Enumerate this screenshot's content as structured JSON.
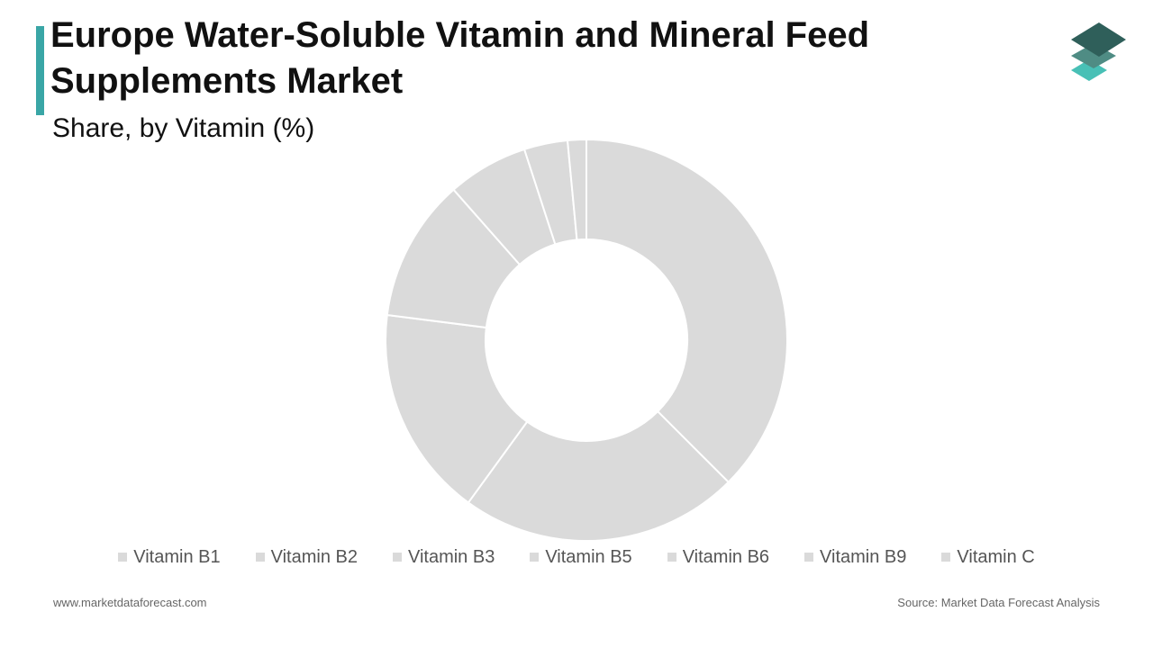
{
  "header": {
    "title": "Europe Water-Soluble Vitamin and Mineral Feed\nSupplements Market",
    "subtitle": "Share, by Vitamin (%)",
    "accent_color": "#3aa6a6"
  },
  "logo": {
    "icon": "stacked-layers-logo-icon",
    "colors": [
      "#2f5f5a",
      "#4f8c84",
      "#48c0b6"
    ]
  },
  "chart_data": {
    "type": "pie",
    "variant": "donut",
    "title": "Share, by Vitamin (%)",
    "categories": [
      "Vitamin B1",
      "Vitamin B2",
      "Vitamin B3",
      "Vitamin B5",
      "Vitamin B6",
      "Vitamin B9",
      "Vitamin C"
    ],
    "values": [
      37.5,
      22.5,
      17.0,
      11.5,
      6.5,
      3.5,
      1.5
    ],
    "data_labels": false,
    "legend_placement": "bottom",
    "colors": {
      "slice_fill": "#dadada",
      "slice_border": "#ffffff",
      "legend_swatch": "#dadada"
    }
  },
  "footer": {
    "website": "www.marketdataforecast.com",
    "source": "Source: Market Data Forecast Analysis"
  }
}
